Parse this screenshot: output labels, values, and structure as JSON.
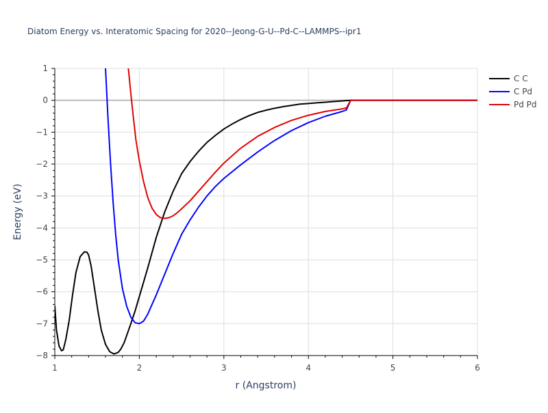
{
  "chart_data": {
    "type": "line",
    "title": "Diatom Energy vs. Interatomic Spacing for 2020--Jeong-G-U--Pd-C--LAMMPS--ipr1",
    "xlabel": "r (Angstrom)",
    "ylabel": "Energy (eV)",
    "xlim": [
      1,
      6
    ],
    "ylim": [
      -8,
      1
    ],
    "xticks": [
      1,
      2,
      3,
      4,
      5,
      6
    ],
    "yticks": [
      1,
      0,
      -1,
      -2,
      -3,
      -4,
      -5,
      -6,
      -7,
      -8
    ],
    "grid": true,
    "legend_position": "top-right",
    "series": [
      {
        "name": "C C",
        "color": "#000000",
        "x": [
          1.0,
          1.02,
          1.05,
          1.08,
          1.1,
          1.13,
          1.17,
          1.21,
          1.25,
          1.3,
          1.35,
          1.38,
          1.4,
          1.43,
          1.47,
          1.51,
          1.55,
          1.6,
          1.65,
          1.7,
          1.75,
          1.78,
          1.82,
          1.86,
          1.9,
          1.95,
          2.0,
          2.05,
          2.1,
          2.2,
          2.3,
          2.4,
          2.5,
          2.6,
          2.7,
          2.8,
          2.9,
          3.0,
          3.1,
          3.2,
          3.3,
          3.4,
          3.5,
          3.6,
          3.7,
          3.8,
          3.9,
          4.0,
          4.1,
          4.2,
          4.3,
          4.4,
          4.5,
          5.0,
          5.5,
          6.0
        ],
        "y": [
          -6.45,
          -7.2,
          -7.7,
          -7.85,
          -7.82,
          -7.5,
          -6.9,
          -6.1,
          -5.4,
          -4.9,
          -4.75,
          -4.76,
          -4.85,
          -5.2,
          -5.9,
          -6.6,
          -7.2,
          -7.65,
          -7.88,
          -7.95,
          -7.9,
          -7.8,
          -7.6,
          -7.3,
          -7.0,
          -6.6,
          -6.15,
          -5.7,
          -5.25,
          -4.3,
          -3.5,
          -2.85,
          -2.3,
          -1.92,
          -1.6,
          -1.32,
          -1.1,
          -0.9,
          -0.74,
          -0.6,
          -0.48,
          -0.38,
          -0.31,
          -0.25,
          -0.2,
          -0.16,
          -0.12,
          -0.1,
          -0.08,
          -0.06,
          -0.04,
          -0.02,
          0.0,
          0.0,
          0.0,
          0.0
        ]
      },
      {
        "name": "C Pd",
        "color": "#0000ff",
        "x": [
          1.6,
          1.63,
          1.66,
          1.69,
          1.72,
          1.75,
          1.8,
          1.85,
          1.9,
          1.95,
          2.0,
          2.05,
          2.1,
          2.2,
          2.3,
          2.4,
          2.5,
          2.6,
          2.7,
          2.8,
          2.9,
          3.0,
          3.2,
          3.4,
          3.6,
          3.8,
          4.0,
          4.2,
          4.4,
          4.45,
          4.5,
          5.0,
          5.5,
          6.0
        ],
        "y": [
          1.0,
          -0.6,
          -2.0,
          -3.2,
          -4.2,
          -5.0,
          -5.9,
          -6.45,
          -6.8,
          -6.97,
          -7.0,
          -6.92,
          -6.7,
          -6.1,
          -5.45,
          -4.8,
          -4.2,
          -3.75,
          -3.35,
          -3.0,
          -2.7,
          -2.45,
          -2.02,
          -1.62,
          -1.26,
          -0.95,
          -0.7,
          -0.5,
          -0.35,
          -0.3,
          0.0,
          0.0,
          0.0,
          0.0
        ]
      },
      {
        "name": "Pd Pd",
        "color": "#e00000",
        "x": [
          1.87,
          1.9,
          1.93,
          1.96,
          2.0,
          2.05,
          2.1,
          2.15,
          2.2,
          2.25,
          2.3,
          2.35,
          2.4,
          2.45,
          2.5,
          2.6,
          2.7,
          2.8,
          2.9,
          3.0,
          3.2,
          3.4,
          3.6,
          3.8,
          4.0,
          4.2,
          4.4,
          4.45,
          4.5,
          5.0,
          5.5,
          6.0
        ],
        "y": [
          1.0,
          0.2,
          -0.55,
          -1.25,
          -1.9,
          -2.55,
          -3.05,
          -3.38,
          -3.58,
          -3.68,
          -3.7,
          -3.68,
          -3.62,
          -3.52,
          -3.4,
          -3.15,
          -2.85,
          -2.55,
          -2.25,
          -1.97,
          -1.5,
          -1.13,
          -0.85,
          -0.63,
          -0.47,
          -0.35,
          -0.27,
          -0.24,
          0.0,
          0.0,
          0.0,
          0.0
        ]
      }
    ]
  }
}
